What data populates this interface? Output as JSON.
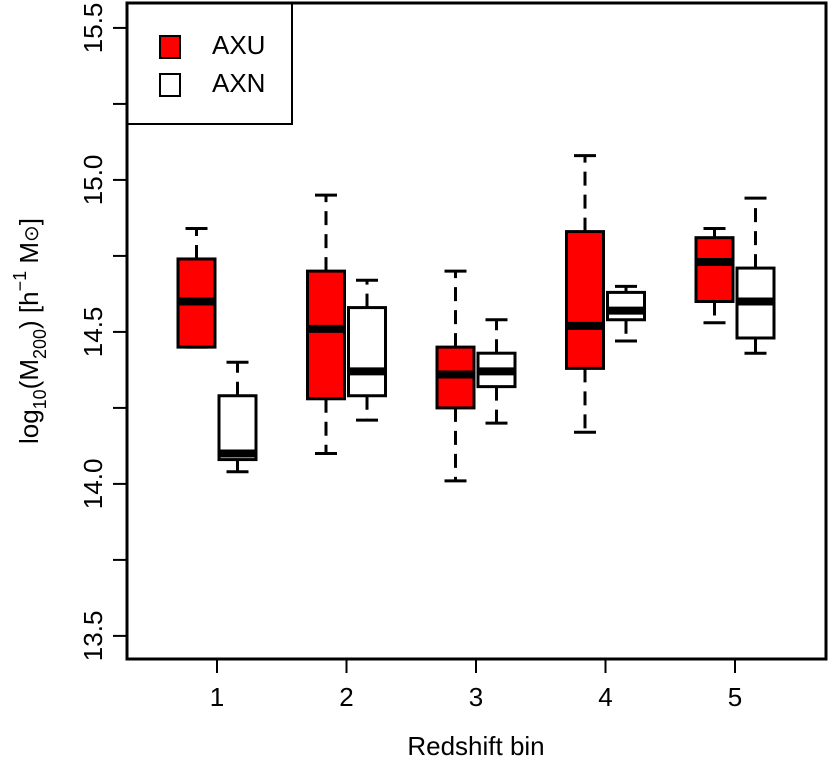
{
  "chart_data": {
    "type": "boxplot",
    "xlabel": "Redshift bin",
    "ylabel_parts": [
      "log",
      "10",
      "(M",
      "200",
      ") [h",
      "−1",
      " M",
      "⊙",
      "]"
    ],
    "categories": [
      "1",
      "2",
      "3",
      "4",
      "5"
    ],
    "series": [
      {
        "name": "AXU",
        "color": "#ff0000",
        "whisker_low": [
          14.45,
          14.1,
          14.01,
          14.17,
          14.53
        ],
        "q1": [
          14.45,
          14.28,
          14.25,
          14.38,
          14.6
        ],
        "median": [
          14.6,
          14.51,
          14.36,
          14.52,
          14.73
        ],
        "q3": [
          14.74,
          14.7,
          14.45,
          14.83,
          14.81
        ],
        "whisker_high": [
          14.84,
          14.95,
          14.7,
          15.08,
          14.84
        ]
      },
      {
        "name": "AXN",
        "color": "#ffffff",
        "whisker_low": [
          14.04,
          14.21,
          14.2,
          14.47,
          14.43
        ],
        "q1": [
          14.08,
          14.29,
          14.32,
          14.54,
          14.48
        ],
        "median": [
          14.1,
          14.37,
          14.37,
          14.57,
          14.6
        ],
        "q3": [
          14.29,
          14.58,
          14.43,
          14.63,
          14.71
        ],
        "whisker_high": [
          14.4,
          14.67,
          14.54,
          14.65,
          14.94
        ]
      }
    ],
    "ylim": [
      13.424,
      15.582
    ],
    "yticks": [
      13.5,
      {
        "value": 14,
        "label": "14.0"
      },
      14.5,
      {
        "value": 15,
        "label": "15.0"
      },
      15.5
    ],
    "yminor_ticks": [
      13.75,
      14.25,
      14.75,
      15.25
    ],
    "legend": "top-left"
  }
}
